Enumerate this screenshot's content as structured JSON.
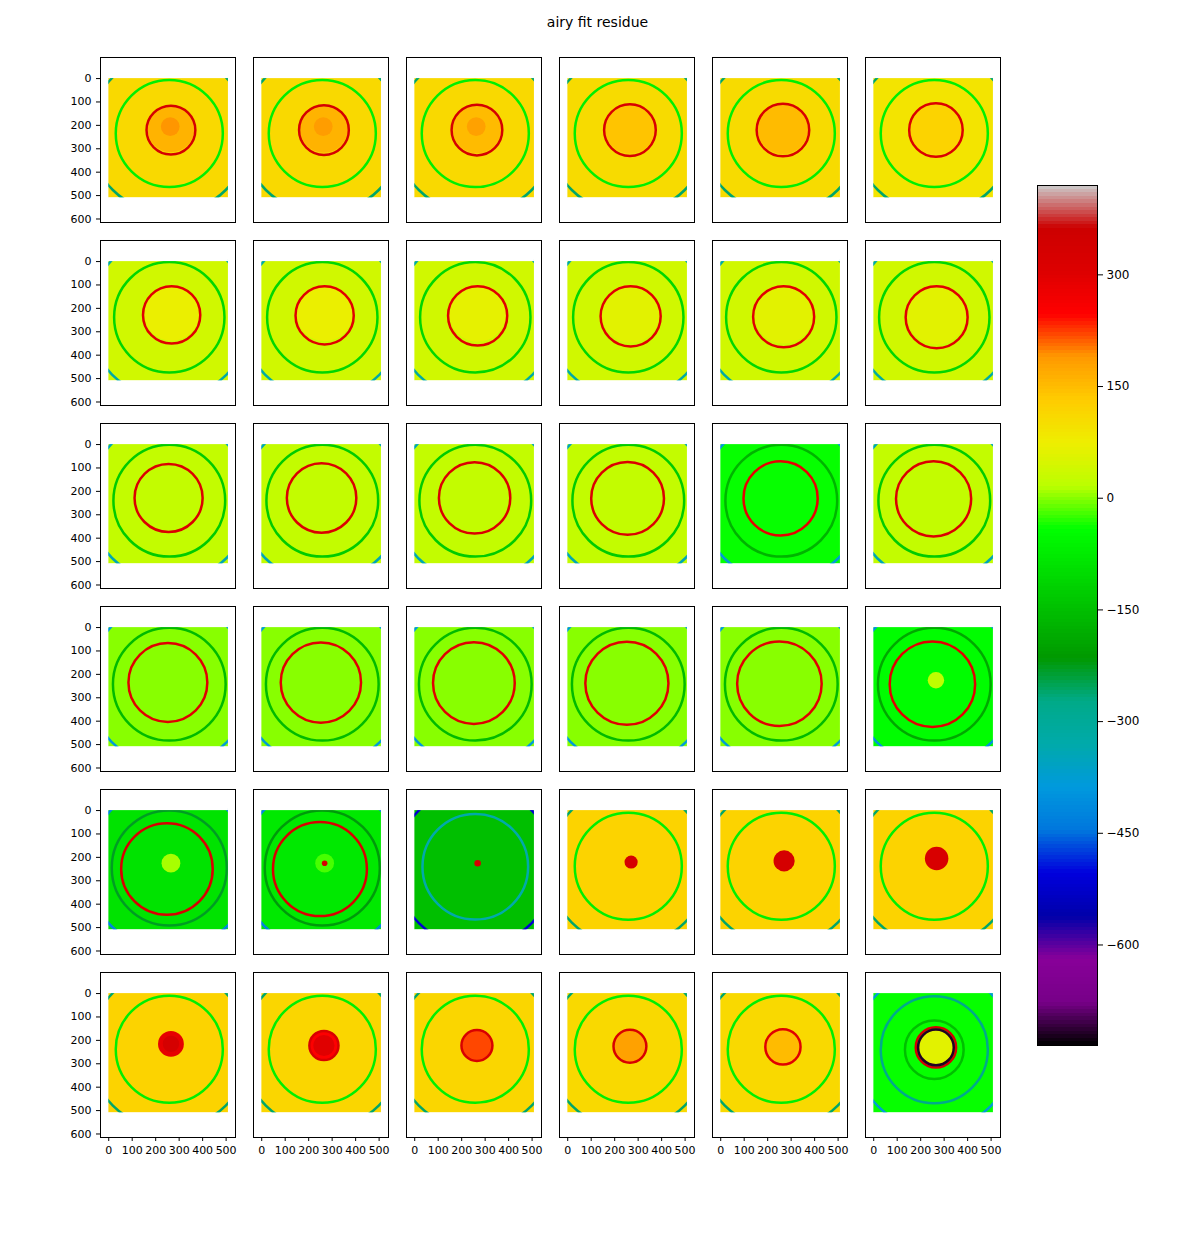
{
  "chart_data": {
    "type": "heatmap",
    "title": "airy fit residue",
    "xlim": [
      -35,
      540
    ],
    "ylim": [
      -90,
      615
    ],
    "xticks": [
      0,
      100,
      200,
      300,
      400,
      500
    ],
    "yticks": [
      0,
      100,
      200,
      300,
      400,
      500,
      600
    ],
    "extent": [
      0,
      510,
      0,
      510
    ],
    "colorbar": {
      "lim": [
        -735,
        420
      ],
      "ticks": [
        -600,
        -450,
        -300,
        -150,
        0,
        150,
        300
      ]
    },
    "panels": [
      {
        "background": 110,
        "disks": [
          {
            "x": 265,
            "y": 215,
            "r": 100,
            "v": 160
          },
          {
            "x": 262,
            "y": 205,
            "r": 40,
            "v": 190
          }
        ],
        "rings": [
          {
            "x": 265,
            "y": 220,
            "r": 104,
            "v": 330
          },
          {
            "x": 258,
            "y": 235,
            "r": 228,
            "v": -70
          },
          {
            "x": 258,
            "y": 235,
            "r": 340,
            "v": -260
          }
        ]
      },
      {
        "background": 110,
        "disks": [
          {
            "x": 265,
            "y": 215,
            "r": 102,
            "v": 160
          },
          {
            "x": 262,
            "y": 205,
            "r": 40,
            "v": 185
          }
        ],
        "rings": [
          {
            "x": 265,
            "y": 220,
            "r": 106,
            "v": 330
          },
          {
            "x": 258,
            "y": 235,
            "r": 228,
            "v": -70
          },
          {
            "x": 258,
            "y": 235,
            "r": 340,
            "v": -260
          }
        ]
      },
      {
        "background": 110,
        "disks": [
          {
            "x": 265,
            "y": 215,
            "r": 104,
            "v": 150
          },
          {
            "x": 262,
            "y": 205,
            "r": 40,
            "v": 180
          }
        ],
        "rings": [
          {
            "x": 265,
            "y": 220,
            "r": 108,
            "v": 330
          },
          {
            "x": 258,
            "y": 235,
            "r": 228,
            "v": -70
          },
          {
            "x": 258,
            "y": 235,
            "r": 340,
            "v": -260
          }
        ]
      },
      {
        "background": 105,
        "disks": [
          {
            "x": 265,
            "y": 215,
            "r": 106,
            "v": 140
          }
        ],
        "rings": [
          {
            "x": 265,
            "y": 220,
            "r": 110,
            "v": 320
          },
          {
            "x": 258,
            "y": 235,
            "r": 228,
            "v": -70
          },
          {
            "x": 258,
            "y": 235,
            "r": 340,
            "v": -260
          }
        ]
      },
      {
        "background": 105,
        "disks": [
          {
            "x": 265,
            "y": 215,
            "r": 108,
            "v": 150
          }
        ],
        "rings": [
          {
            "x": 265,
            "y": 220,
            "r": 112,
            "v": 320
          },
          {
            "x": 258,
            "y": 235,
            "r": 228,
            "v": -70
          },
          {
            "x": 258,
            "y": 235,
            "r": 340,
            "v": -260
          }
        ]
      },
      {
        "background": 90,
        "disks": [
          {
            "x": 265,
            "y": 215,
            "r": 110,
            "v": 120
          }
        ],
        "rings": [
          {
            "x": 265,
            "y": 220,
            "r": 114,
            "v": 310
          },
          {
            "x": 258,
            "y": 235,
            "r": 228,
            "v": -70
          },
          {
            "x": 258,
            "y": 235,
            "r": 340,
            "v": -260
          }
        ]
      },
      {
        "background": 40,
        "disks": [
          {
            "x": 268,
            "y": 220,
            "r": 118,
            "v": 70
          }
        ],
        "rings": [
          {
            "x": 268,
            "y": 228,
            "r": 122,
            "v": 300
          },
          {
            "x": 258,
            "y": 238,
            "r": 235,
            "v": -110
          },
          {
            "x": 258,
            "y": 238,
            "r": 345,
            "v": -320
          }
        ]
      },
      {
        "background": 40,
        "disks": [
          {
            "x": 268,
            "y": 220,
            "r": 120,
            "v": 70
          }
        ],
        "rings": [
          {
            "x": 268,
            "y": 230,
            "r": 124,
            "v": 300
          },
          {
            "x": 258,
            "y": 238,
            "r": 235,
            "v": -110
          },
          {
            "x": 258,
            "y": 238,
            "r": 345,
            "v": -320
          }
        ]
      },
      {
        "background": 40,
        "disks": [
          {
            "x": 268,
            "y": 220,
            "r": 122,
            "v": 65
          }
        ],
        "rings": [
          {
            "x": 268,
            "y": 232,
            "r": 126,
            "v": 300
          },
          {
            "x": 258,
            "y": 238,
            "r": 235,
            "v": -110
          },
          {
            "x": 258,
            "y": 238,
            "r": 345,
            "v": -320
          }
        ]
      },
      {
        "background": 40,
        "disks": [
          {
            "x": 268,
            "y": 222,
            "r": 124,
            "v": 60
          }
        ],
        "rings": [
          {
            "x": 268,
            "y": 234,
            "r": 128,
            "v": 300
          },
          {
            "x": 258,
            "y": 238,
            "r": 235,
            "v": -110
          },
          {
            "x": 258,
            "y": 238,
            "r": 345,
            "v": -320
          }
        ]
      },
      {
        "background": 40,
        "disks": [
          {
            "x": 268,
            "y": 224,
            "r": 126,
            "v": 60
          }
        ],
        "rings": [
          {
            "x": 268,
            "y": 236,
            "r": 130,
            "v": 300
          },
          {
            "x": 258,
            "y": 238,
            "r": 235,
            "v": -110
          },
          {
            "x": 258,
            "y": 238,
            "r": 345,
            "v": -320
          }
        ]
      },
      {
        "background": 40,
        "disks": [
          {
            "x": 268,
            "y": 226,
            "r": 128,
            "v": 60
          }
        ],
        "rings": [
          {
            "x": 268,
            "y": 238,
            "r": 132,
            "v": 300
          },
          {
            "x": 258,
            "y": 238,
            "r": 235,
            "v": -110
          },
          {
            "x": 258,
            "y": 238,
            "r": 345,
            "v": -320
          }
        ]
      },
      {
        "background": 25,
        "disks": [],
        "rings": [
          {
            "x": 255,
            "y": 228,
            "r": 145,
            "v": 310
          },
          {
            "x": 258,
            "y": 240,
            "r": 238,
            "v": -130
          },
          {
            "x": 258,
            "y": 240,
            "r": 345,
            "v": -340
          }
        ]
      },
      {
        "background": 25,
        "disks": [],
        "rings": [
          {
            "x": 255,
            "y": 228,
            "r": 148,
            "v": 310
          },
          {
            "x": 258,
            "y": 240,
            "r": 238,
            "v": -130
          },
          {
            "x": 258,
            "y": 240,
            "r": 345,
            "v": -340
          }
        ]
      },
      {
        "background": 25,
        "disks": [],
        "rings": [
          {
            "x": 255,
            "y": 228,
            "r": 152,
            "v": 310
          },
          {
            "x": 258,
            "y": 240,
            "r": 238,
            "v": -130
          },
          {
            "x": 258,
            "y": 240,
            "r": 345,
            "v": -340
          }
        ]
      },
      {
        "background": 25,
        "disks": [],
        "rings": [
          {
            "x": 255,
            "y": 230,
            "r": 155,
            "v": 310
          },
          {
            "x": 258,
            "y": 240,
            "r": 238,
            "v": -130
          },
          {
            "x": 258,
            "y": 240,
            "r": 345,
            "v": -340
          }
        ]
      },
      {
        "background": -40,
        "disks": [],
        "rings": [
          {
            "x": 255,
            "y": 230,
            "r": 158,
            "v": 290
          },
          {
            "x": 258,
            "y": 240,
            "r": 238,
            "v": -170
          },
          {
            "x": 258,
            "y": 240,
            "r": 345,
            "v": -380
          }
        ]
      },
      {
        "background": 25,
        "disks": [],
        "rings": [
          {
            "x": 255,
            "y": 232,
            "r": 160,
            "v": 310
          },
          {
            "x": 258,
            "y": 240,
            "r": 238,
            "v": -130
          },
          {
            "x": 258,
            "y": 240,
            "r": 345,
            "v": -340
          }
        ]
      },
      {
        "background": 0,
        "disks": [],
        "rings": [
          {
            "x": 252,
            "y": 235,
            "r": 168,
            "v": 300
          },
          {
            "x": 258,
            "y": 242,
            "r": 240,
            "v": -160
          },
          {
            "x": 258,
            "y": 242,
            "r": 348,
            "v": -380
          }
        ]
      },
      {
        "background": 0,
        "disks": [],
        "rings": [
          {
            "x": 252,
            "y": 235,
            "r": 171,
            "v": 300
          },
          {
            "x": 258,
            "y": 242,
            "r": 240,
            "v": -160
          },
          {
            "x": 258,
            "y": 242,
            "r": 348,
            "v": -380
          }
        ]
      },
      {
        "background": 0,
        "disks": [],
        "rings": [
          {
            "x": 252,
            "y": 237,
            "r": 174,
            "v": 300
          },
          {
            "x": 258,
            "y": 242,
            "r": 240,
            "v": -160
          },
          {
            "x": 258,
            "y": 242,
            "r": 348,
            "v": -380
          }
        ]
      },
      {
        "background": 0,
        "disks": [],
        "rings": [
          {
            "x": 252,
            "y": 238,
            "r": 177,
            "v": 300
          },
          {
            "x": 258,
            "y": 242,
            "r": 240,
            "v": -160
          },
          {
            "x": 258,
            "y": 242,
            "r": 348,
            "v": -380
          }
        ]
      },
      {
        "background": 0,
        "disks": [],
        "rings": [
          {
            "x": 250,
            "y": 240,
            "r": 180,
            "v": 300
          },
          {
            "x": 258,
            "y": 242,
            "r": 240,
            "v": -160
          },
          {
            "x": 258,
            "y": 242,
            "r": 348,
            "v": -380
          }
        ]
      },
      {
        "background": -45,
        "disks": [
          {
            "x": 265,
            "y": 225,
            "r": 35,
            "v": 20
          }
        ],
        "rings": [
          {
            "x": 250,
            "y": 242,
            "r": 182,
            "v": 300
          },
          {
            "x": 258,
            "y": 242,
            "r": 240,
            "v": -190
          },
          {
            "x": 258,
            "y": 242,
            "r": 348,
            "v": -400
          }
        ]
      },
      {
        "background": -90,
        "disks": [
          {
            "x": 265,
            "y": 225,
            "r": 40,
            "v": 10
          }
        ],
        "rings": [
          {
            "x": 248,
            "y": 250,
            "r": 195,
            "v": 320
          },
          {
            "x": 258,
            "y": 245,
            "r": 245,
            "v": -230
          },
          {
            "x": 258,
            "y": 245,
            "r": 350,
            "v": -420
          }
        ]
      },
      {
        "background": -80,
        "disks": [
          {
            "x": 268,
            "y": 225,
            "r": 40,
            "v": -20
          },
          {
            "x": 268,
            "y": 225,
            "r": 12,
            "v": 330
          }
        ],
        "rings": [
          {
            "x": 248,
            "y": 250,
            "r": 200,
            "v": 320
          },
          {
            "x": 258,
            "y": 245,
            "r": 245,
            "v": -220
          },
          {
            "x": 258,
            "y": 245,
            "r": 350,
            "v": -420
          }
        ]
      },
      {
        "background": -150,
        "disks": [
          {
            "x": 268,
            "y": 225,
            "r": 14,
            "v": 330
          }
        ],
        "rings": [
          {
            "x": 258,
            "y": 240,
            "r": 225,
            "v": -330
          },
          {
            "x": 258,
            "y": 240,
            "r": 340,
            "v": -520
          }
        ]
      },
      {
        "background": 120,
        "disks": [
          {
            "x": 270,
            "y": 220,
            "r": 28,
            "v": 330
          }
        ],
        "rings": [
          {
            "x": 258,
            "y": 238,
            "r": 228,
            "v": -70
          },
          {
            "x": 258,
            "y": 238,
            "r": 340,
            "v": -260
          }
        ]
      },
      {
        "background": 120,
        "disks": [
          {
            "x": 270,
            "y": 215,
            "r": 45,
            "v": 330
          }
        ],
        "rings": [
          {
            "x": 258,
            "y": 238,
            "r": 228,
            "v": -70
          },
          {
            "x": 258,
            "y": 238,
            "r": 340,
            "v": -260
          }
        ]
      },
      {
        "background": 120,
        "disks": [
          {
            "x": 268,
            "y": 205,
            "r": 50,
            "v": 320
          }
        ],
        "rings": [
          {
            "x": 258,
            "y": 238,
            "r": 228,
            "v": -70
          },
          {
            "x": 258,
            "y": 238,
            "r": 340,
            "v": -260
          }
        ]
      },
      {
        "background": 120,
        "disks": [
          {
            "x": 265,
            "y": 215,
            "r": 55,
            "v": 290
          },
          {
            "x": 265,
            "y": 215,
            "r": 35,
            "v": 330
          }
        ],
        "rings": [
          {
            "x": 258,
            "y": 238,
            "r": 228,
            "v": -70
          },
          {
            "x": 258,
            "y": 238,
            "r": 340,
            "v": -260
          }
        ]
      },
      {
        "background": 115,
        "disks": [
          {
            "x": 265,
            "y": 222,
            "r": 62,
            "v": 250
          },
          {
            "x": 265,
            "y": 222,
            "r": 45,
            "v": 300
          }
        ],
        "rings": [
          {
            "x": 265,
            "y": 222,
            "r": 62,
            "v": 320
          },
          {
            "x": 258,
            "y": 238,
            "r": 228,
            "v": -70
          },
          {
            "x": 258,
            "y": 238,
            "r": 340,
            "v": -260
          }
        ]
      },
      {
        "background": 115,
        "disks": [
          {
            "x": 265,
            "y": 222,
            "r": 64,
            "v": 220
          }
        ],
        "rings": [
          {
            "x": 265,
            "y": 222,
            "r": 66,
            "v": 320
          },
          {
            "x": 258,
            "y": 238,
            "r": 228,
            "v": -70
          },
          {
            "x": 258,
            "y": 238,
            "r": 340,
            "v": -260
          }
        ]
      },
      {
        "background": 110,
        "disks": [
          {
            "x": 265,
            "y": 225,
            "r": 68,
            "v": 180
          }
        ],
        "rings": [
          {
            "x": 265,
            "y": 225,
            "r": 70,
            "v": 320
          },
          {
            "x": 258,
            "y": 238,
            "r": 228,
            "v": -70
          },
          {
            "x": 258,
            "y": 238,
            "r": 340,
            "v": -260
          }
        ]
      },
      {
        "background": 110,
        "disks": [
          {
            "x": 265,
            "y": 228,
            "r": 72,
            "v": 150
          }
        ],
        "rings": [
          {
            "x": 265,
            "y": 228,
            "r": 75,
            "v": 300
          },
          {
            "x": 258,
            "y": 238,
            "r": 228,
            "v": -70
          },
          {
            "x": 258,
            "y": 238,
            "r": 340,
            "v": -260
          }
        ]
      },
      {
        "background": -40,
        "disks": [
          {
            "x": 265,
            "y": 230,
            "r": 78,
            "v": 60
          }
        ],
        "rings": [
          {
            "x": 265,
            "y": 230,
            "r": 86,
            "v": 330
          },
          {
            "x": 265,
            "y": 230,
            "r": 76,
            "v": -720
          },
          {
            "x": 258,
            "y": 240,
            "r": 125,
            "v": -150
          },
          {
            "x": 258,
            "y": 240,
            "r": 228,
            "v": -280
          },
          {
            "x": 258,
            "y": 240,
            "r": 340,
            "v": -380
          }
        ]
      }
    ]
  }
}
